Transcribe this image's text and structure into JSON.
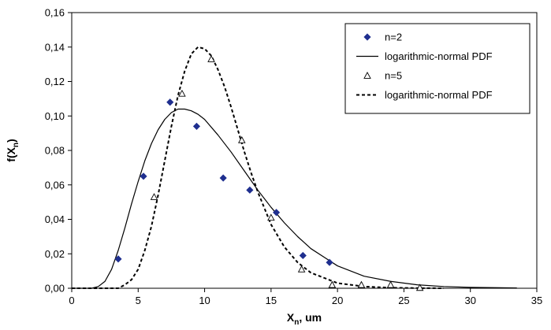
{
  "chart_data": {
    "type": "scatter",
    "title": "",
    "xlabel": {
      "base": "X",
      "sub": "n",
      "suffix": ", um"
    },
    "ylabel": {
      "prefix": "f(X",
      "sub": "n",
      "suffix": ")"
    },
    "xlim": [
      0,
      35
    ],
    "ylim": [
      0,
      0.16
    ],
    "x_ticks": [
      0,
      5,
      10,
      15,
      20,
      25,
      30,
      35
    ],
    "y_ticks": [
      0,
      0.02,
      0.04,
      0.06,
      0.08,
      0.1,
      0.12,
      0.14,
      0.16
    ],
    "x_tick_labels": [
      "0",
      "5",
      "10",
      "15",
      "20",
      "25",
      "30",
      "35"
    ],
    "y_tick_labels": [
      "0,00",
      "0,02",
      "0,04",
      "0,06",
      "0,08",
      "0,10",
      "0,12",
      "0,14",
      "0,16"
    ],
    "grid": false,
    "legend_position": "top-right",
    "series": [
      {
        "name": "n=2",
        "kind": "markers",
        "marker": "diamond",
        "color": "#1f2f8f",
        "points": [
          [
            3.5,
            0.017
          ],
          [
            5.4,
            0.065
          ],
          [
            7.4,
            0.108
          ],
          [
            9.4,
            0.094
          ],
          [
            11.4,
            0.064
          ],
          [
            13.4,
            0.057
          ],
          [
            15.4,
            0.044
          ],
          [
            17.4,
            0.019
          ],
          [
            19.4,
            0.015
          ]
        ]
      },
      {
        "name": "logarithmic-normal PDF",
        "kind": "line",
        "style": "solid",
        "color": "#000000",
        "points": [
          [
            0,
            0
          ],
          [
            1.5,
            0
          ],
          [
            2,
            0.001
          ],
          [
            2.5,
            0.004
          ],
          [
            3,
            0.011
          ],
          [
            3.5,
            0.022
          ],
          [
            4,
            0.035
          ],
          [
            4.5,
            0.049
          ],
          [
            5,
            0.062
          ],
          [
            5.5,
            0.074
          ],
          [
            6,
            0.084
          ],
          [
            6.5,
            0.092
          ],
          [
            7,
            0.098
          ],
          [
            7.5,
            0.102
          ],
          [
            8,
            0.104
          ],
          [
            8.5,
            0.104
          ],
          [
            9,
            0.103
          ],
          [
            9.5,
            0.101
          ],
          [
            10,
            0.098
          ],
          [
            11,
            0.089
          ],
          [
            12,
            0.079
          ],
          [
            13,
            0.068
          ],
          [
            14,
            0.057
          ],
          [
            15,
            0.047
          ],
          [
            16,
            0.038
          ],
          [
            17,
            0.03
          ],
          [
            18,
            0.023
          ],
          [
            19,
            0.018
          ],
          [
            20,
            0.013
          ],
          [
            22,
            0.007
          ],
          [
            24,
            0.004
          ],
          [
            26,
            0.002
          ],
          [
            28,
            0.001
          ],
          [
            30,
            0.0005
          ],
          [
            33.5,
            0.0002
          ]
        ]
      },
      {
        "name": "n=5",
        "kind": "markers",
        "marker": "triangle",
        "color": "#000000",
        "points": [
          [
            6.2,
            0.053
          ],
          [
            8.3,
            0.113
          ],
          [
            10.5,
            0.133
          ],
          [
            12.8,
            0.086
          ],
          [
            15.0,
            0.041
          ],
          [
            17.3,
            0.011
          ],
          [
            19.6,
            0.002
          ],
          [
            21.8,
            0.002
          ],
          [
            24.0,
            0.002
          ],
          [
            26.2,
            0.0003
          ]
        ]
      },
      {
        "name": "logarithmic-normal PDF",
        "kind": "line",
        "style": "dashed",
        "color": "#000000",
        "points": [
          [
            0,
            0
          ],
          [
            3.5,
            0
          ],
          [
            4,
            0.002
          ],
          [
            4.5,
            0.005
          ],
          [
            5,
            0.011
          ],
          [
            5.5,
            0.022
          ],
          [
            6,
            0.036
          ],
          [
            6.5,
            0.054
          ],
          [
            7,
            0.074
          ],
          [
            7.5,
            0.094
          ],
          [
            8,
            0.112
          ],
          [
            8.5,
            0.126
          ],
          [
            9,
            0.136
          ],
          [
            9.5,
            0.14
          ],
          [
            10,
            0.139
          ],
          [
            10.5,
            0.135
          ],
          [
            11,
            0.127
          ],
          [
            11.5,
            0.117
          ],
          [
            12,
            0.105
          ],
          [
            12.5,
            0.092
          ],
          [
            13,
            0.079
          ],
          [
            13.5,
            0.067
          ],
          [
            14,
            0.056
          ],
          [
            15,
            0.037
          ],
          [
            16,
            0.024
          ],
          [
            17,
            0.015
          ],
          [
            18,
            0.009
          ],
          [
            19,
            0.006
          ],
          [
            20,
            0.003
          ],
          [
            22,
            0.001
          ],
          [
            24,
            0.0003
          ],
          [
            26,
            0.0001
          ],
          [
            28,
            0
          ]
        ]
      }
    ]
  }
}
